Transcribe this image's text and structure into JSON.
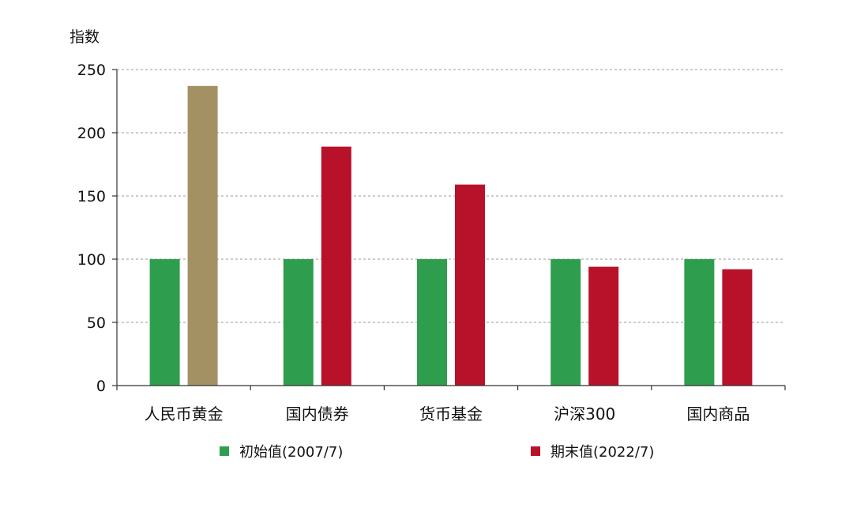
{
  "chart_data": {
    "type": "bar",
    "title": "",
    "xlabel": "",
    "ylabel": "指数",
    "ylim": [
      0,
      250
    ],
    "yticks": [
      0,
      50,
      100,
      150,
      200,
      250
    ],
    "grid": true,
    "legend_position": "bottom",
    "categories": [
      "人民币黄金",
      "国内债券",
      "货币基金",
      "沪深300",
      "国内商品"
    ],
    "series": [
      {
        "name": "初始值(2007/7)",
        "values": [
          100,
          100,
          100,
          100,
          100
        ],
        "color": "#2e9e4e"
      },
      {
        "name": "期末值(2022/7)",
        "values": [
          237,
          189,
          159,
          94,
          92
        ],
        "color": "#b8122a",
        "point_colors": [
          "#a39164",
          "#b8122a",
          "#b8122a",
          "#b8122a",
          "#b8122a"
        ]
      }
    ]
  }
}
